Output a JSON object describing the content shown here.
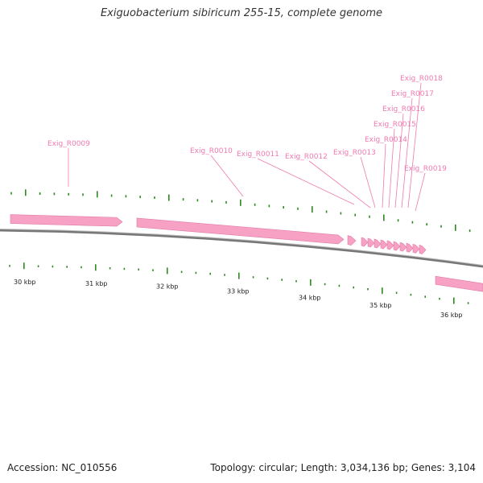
{
  "title": "Exiguobacterium sibiricum 255-15, complete genome",
  "accession": "Accession: NC_010556",
  "summary": "Topology: circular; Length: 3,034,136 bp; Genes: 3,104",
  "colors": {
    "gene": "#f7a1c4",
    "gene_dark": "#e27aa6",
    "label": "#f07ab0",
    "tick": "#2d8a1f",
    "backbone": "#777777"
  },
  "kbp_labels": [
    "30 kbp",
    "31 kbp",
    "32 kbp",
    "33 kbp",
    "34 kbp",
    "35 kbp",
    "36 kbp"
  ],
  "gene_labels": [
    "Exig_R0009",
    "Exig_R0010",
    "Exig_R0011",
    "Exig_R0012",
    "Exig_R0013",
    "Exig_R0014",
    "Exig_R0015",
    "Exig_R0016",
    "Exig_R0017",
    "Exig_R0018",
    "Exig_R0019"
  ]
}
